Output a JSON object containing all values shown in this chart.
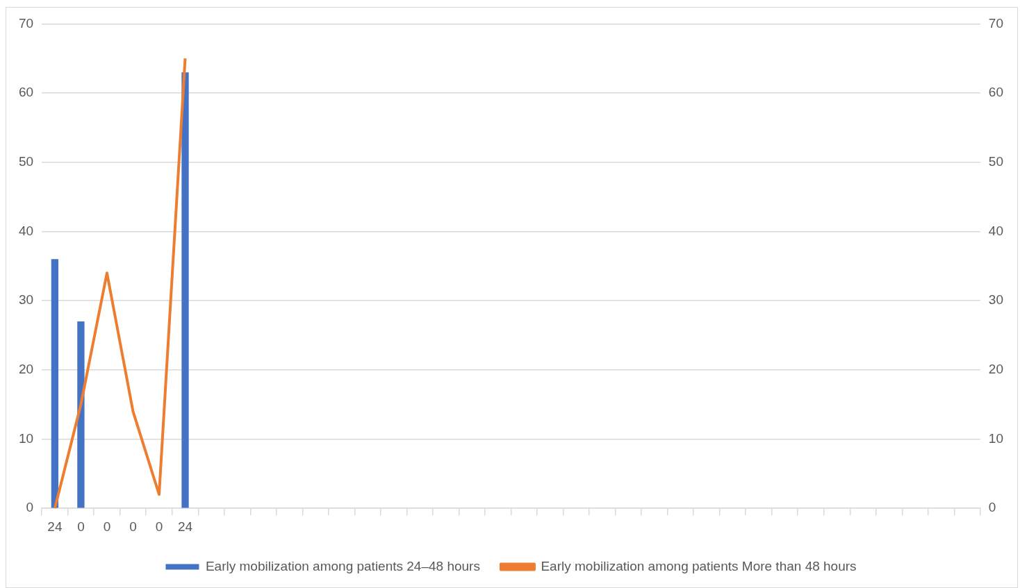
{
  "chart_data": {
    "type": "bar",
    "categories": [
      "24",
      "0",
      "0",
      "0",
      "0",
      "24",
      null,
      null,
      null,
      null,
      null,
      null,
      null,
      null,
      null,
      null,
      null,
      null,
      null,
      null,
      null,
      null,
      null,
      null,
      null,
      null,
      null,
      null,
      null,
      null,
      null,
      null,
      null,
      null,
      null,
      null
    ],
    "series": [
      {
        "name": "Early mobilization among patients 24–48 hours",
        "color": "#4472c4",
        "values": [
          36,
          27,
          null,
          null,
          null,
          63,
          null,
          null,
          null,
          null,
          null,
          null,
          null,
          null,
          null,
          null,
          null,
          null,
          null,
          null,
          null,
          null,
          null,
          null,
          null,
          null,
          null,
          null,
          null,
          null,
          null,
          null,
          null,
          null,
          null,
          null
        ]
      },
      {
        "name": "Early mobilization among patients More than 48 hours",
        "type": "line",
        "axis": "y2",
        "color": "#ed7d31",
        "values": [
          0,
          15,
          34,
          14,
          2,
          65,
          null,
          null,
          null,
          null,
          null,
          null,
          null,
          null,
          null,
          null,
          null,
          null,
          null,
          null,
          null,
          null,
          null,
          null,
          null,
          null,
          null,
          null,
          null,
          null,
          null,
          null,
          null,
          null,
          null,
          null
        ]
      }
    ],
    "ylim": [
      0,
      70
    ],
    "yticks": [
      0,
      10,
      20,
      30,
      40,
      50,
      60,
      70
    ],
    "y2lim": [
      0,
      70
    ],
    "y2ticks": [
      0,
      10,
      20,
      30,
      40,
      50,
      60,
      70
    ],
    "grid": "y",
    "legend": "bottom",
    "marker": "none"
  }
}
